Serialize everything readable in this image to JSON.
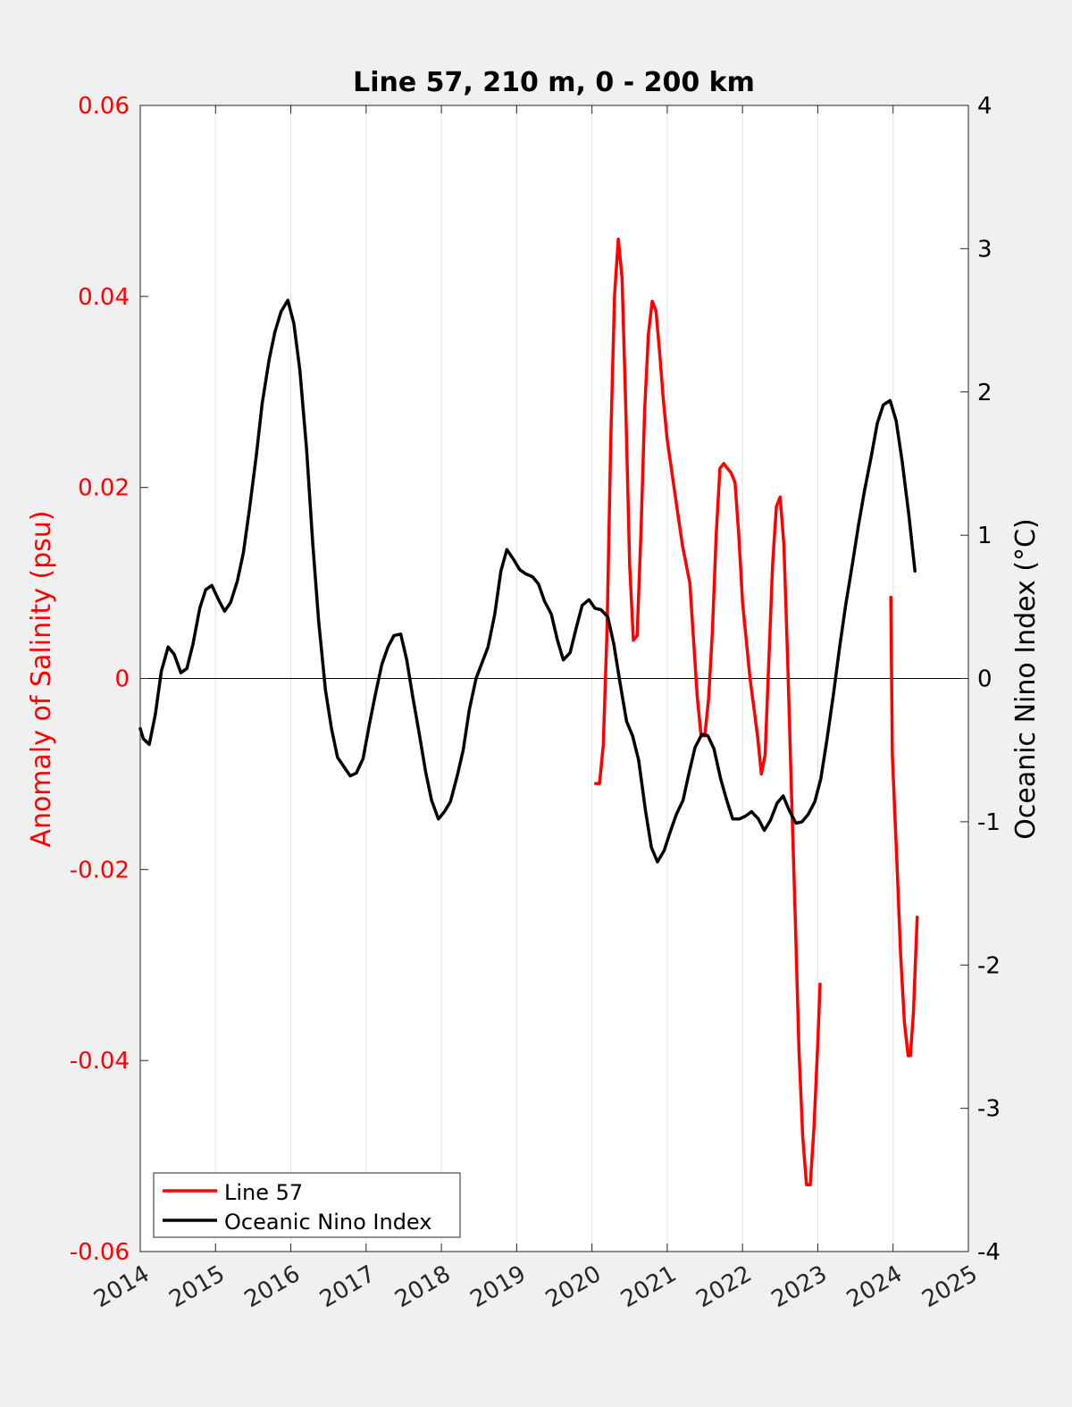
{
  "chart_data": {
    "type": "line",
    "title": "Line 57, 210 m, 0 - 200 km",
    "xlim": [
      2014,
      2025
    ],
    "xticks": [
      "2014",
      "2015",
      "2016",
      "2017",
      "2018",
      "2019",
      "2020",
      "2021",
      "2022",
      "2023",
      "2024",
      "2025"
    ],
    "grid": "vertical",
    "legend_position": "bottom-left",
    "left_axis": {
      "ylabel": "Anomaly of Salinity (psu)",
      "ylim": [
        -0.06,
        0.06
      ],
      "ticks": [
        "-0.06",
        "-0.04",
        "-0.02",
        "0",
        "0.02",
        "0.04",
        "0.06"
      ],
      "color": "#ff0000"
    },
    "right_axis": {
      "ylabel": "Oceanic Nino Index (°C)",
      "ylim": [
        -4,
        4
      ],
      "ticks": [
        "-4",
        "-3",
        "-2",
        "-1",
        "0",
        "1",
        "2",
        "3",
        "4"
      ],
      "color": "#000000"
    },
    "series": [
      {
        "name": "Line 57",
        "axis": "left",
        "color": "#ff0000",
        "segments": [
          [
            [
              2020.05,
              -0.011
            ],
            [
              2020.1,
              -0.011
            ],
            [
              2020.15,
              -0.007
            ],
            [
              2020.2,
              0.005
            ],
            [
              2020.25,
              0.025
            ],
            [
              2020.3,
              0.04
            ],
            [
              2020.35,
              0.046
            ],
            [
              2020.4,
              0.042
            ],
            [
              2020.45,
              0.028
            ],
            [
              2020.5,
              0.012
            ],
            [
              2020.55,
              0.004
            ],
            [
              2020.6,
              0.0045
            ],
            [
              2020.65,
              0.015
            ],
            [
              2020.7,
              0.028
            ],
            [
              2020.75,
              0.036
            ],
            [
              2020.8,
              0.0395
            ],
            [
              2020.85,
              0.0385
            ],
            [
              2020.9,
              0.034
            ],
            [
              2020.95,
              0.029
            ],
            [
              2021.0,
              0.025
            ],
            [
              2021.1,
              0.0195
            ],
            [
              2021.2,
              0.014
            ],
            [
              2021.3,
              0.01
            ],
            [
              2021.35,
              0.004
            ],
            [
              2021.4,
              -0.002
            ],
            [
              2021.45,
              -0.006
            ],
            [
              2021.5,
              -0.006
            ],
            [
              2021.55,
              -0.002
            ],
            [
              2021.6,
              0.005
            ],
            [
              2021.65,
              0.015
            ],
            [
              2021.7,
              0.022
            ],
            [
              2021.75,
              0.0225
            ],
            [
              2021.8,
              0.022
            ],
            [
              2021.85,
              0.0215
            ],
            [
              2021.9,
              0.0205
            ],
            [
              2021.95,
              0.015
            ],
            [
              2022.0,
              0.008
            ],
            [
              2022.1,
              0.0
            ],
            [
              2022.2,
              -0.006
            ],
            [
              2022.25,
              -0.01
            ],
            [
              2022.3,
              -0.008
            ],
            [
              2022.35,
              0.002
            ],
            [
              2022.4,
              0.012
            ],
            [
              2022.45,
              0.018
            ],
            [
              2022.5,
              0.019
            ],
            [
              2022.55,
              0.014
            ],
            [
              2022.6,
              0.002
            ],
            [
              2022.65,
              -0.012
            ],
            [
              2022.7,
              -0.025
            ],
            [
              2022.75,
              -0.039
            ],
            [
              2022.8,
              -0.048
            ],
            [
              2022.85,
              -0.053
            ],
            [
              2022.9,
              -0.053
            ],
            [
              2022.95,
              -0.047
            ],
            [
              2023.0,
              -0.038
            ],
            [
              2023.03,
              -0.032
            ]
          ],
          [
            [
              2023.97,
              0.0085
            ],
            [
              2023.99,
              -0.008
            ],
            [
              2024.05,
              -0.019
            ],
            [
              2024.1,
              -0.029
            ],
            [
              2024.15,
              -0.036
            ],
            [
              2024.2,
              -0.0395
            ],
            [
              2024.23,
              -0.0395
            ],
            [
              2024.27,
              -0.035
            ],
            [
              2024.32,
              -0.025
            ]
          ]
        ]
      },
      {
        "name": "Oceanic Nino Index",
        "axis": "right",
        "color": "#000000",
        "segments": [
          [
            [
              2014.0,
              -0.35
            ],
            [
              2014.04,
              -0.42
            ],
            [
              2014.12,
              -0.46
            ],
            [
              2014.2,
              -0.25
            ],
            [
              2014.28,
              0.05
            ],
            [
              2014.37,
              0.22
            ],
            [
              2014.45,
              0.17
            ],
            [
              2014.54,
              0.04
            ],
            [
              2014.62,
              0.07
            ],
            [
              2014.7,
              0.24
            ],
            [
              2014.79,
              0.49
            ],
            [
              2014.87,
              0.62
            ],
            [
              2014.95,
              0.65
            ],
            [
              2015.04,
              0.55
            ],
            [
              2015.12,
              0.47
            ],
            [
              2015.2,
              0.53
            ],
            [
              2015.29,
              0.68
            ],
            [
              2015.37,
              0.88
            ],
            [
              2015.45,
              1.18
            ],
            [
              2015.54,
              1.55
            ],
            [
              2015.62,
              1.92
            ],
            [
              2015.71,
              2.22
            ],
            [
              2015.79,
              2.42
            ],
            [
              2015.87,
              2.56
            ],
            [
              2015.96,
              2.64
            ],
            [
              2016.04,
              2.48
            ],
            [
              2016.12,
              2.15
            ],
            [
              2016.21,
              1.6
            ],
            [
              2016.29,
              0.95
            ],
            [
              2016.37,
              0.4
            ],
            [
              2016.46,
              -0.08
            ],
            [
              2016.54,
              -0.35
            ],
            [
              2016.62,
              -0.55
            ],
            [
              2016.71,
              -0.62
            ],
            [
              2016.79,
              -0.68
            ],
            [
              2016.87,
              -0.66
            ],
            [
              2016.96,
              -0.56
            ],
            [
              2017.04,
              -0.33
            ],
            [
              2017.12,
              -0.12
            ],
            [
              2017.21,
              0.1
            ],
            [
              2017.29,
              0.22
            ],
            [
              2017.37,
              0.3
            ],
            [
              2017.46,
              0.31
            ],
            [
              2017.54,
              0.13
            ],
            [
              2017.62,
              -0.13
            ],
            [
              2017.71,
              -0.4
            ],
            [
              2017.79,
              -0.65
            ],
            [
              2017.87,
              -0.85
            ],
            [
              2017.96,
              -0.98
            ],
            [
              2018.04,
              -0.93
            ],
            [
              2018.12,
              -0.86
            ],
            [
              2018.21,
              -0.68
            ],
            [
              2018.29,
              -0.5
            ],
            [
              2018.37,
              -0.22
            ],
            [
              2018.46,
              0.0
            ],
            [
              2018.54,
              0.11
            ],
            [
              2018.62,
              0.22
            ],
            [
              2018.71,
              0.45
            ],
            [
              2018.79,
              0.75
            ],
            [
              2018.87,
              0.9
            ],
            [
              2018.96,
              0.83
            ],
            [
              2019.04,
              0.76
            ],
            [
              2019.12,
              0.73
            ],
            [
              2019.21,
              0.71
            ],
            [
              2019.29,
              0.66
            ],
            [
              2019.37,
              0.54
            ],
            [
              2019.46,
              0.45
            ],
            [
              2019.54,
              0.27
            ],
            [
              2019.62,
              0.13
            ],
            [
              2019.71,
              0.18
            ],
            [
              2019.79,
              0.35
            ],
            [
              2019.87,
              0.51
            ],
            [
              2019.96,
              0.55
            ],
            [
              2020.04,
              0.49
            ],
            [
              2020.12,
              0.48
            ],
            [
              2020.21,
              0.43
            ],
            [
              2020.29,
              0.24
            ],
            [
              2020.37,
              -0.02
            ],
            [
              2020.46,
              -0.3
            ],
            [
              2020.54,
              -0.4
            ],
            [
              2020.62,
              -0.57
            ],
            [
              2020.71,
              -0.92
            ],
            [
              2020.79,
              -1.18
            ],
            [
              2020.87,
              -1.28
            ],
            [
              2020.96,
              -1.2
            ],
            [
              2021.04,
              -1.07
            ],
            [
              2021.12,
              -0.95
            ],
            [
              2021.21,
              -0.85
            ],
            [
              2021.29,
              -0.66
            ],
            [
              2021.37,
              -0.48
            ],
            [
              2021.46,
              -0.39
            ],
            [
              2021.54,
              -0.4
            ],
            [
              2021.62,
              -0.49
            ],
            [
              2021.71,
              -0.7
            ],
            [
              2021.79,
              -0.85
            ],
            [
              2021.87,
              -0.98
            ],
            [
              2021.96,
              -0.98
            ],
            [
              2022.04,
              -0.96
            ],
            [
              2022.12,
              -0.93
            ],
            [
              2022.21,
              -0.98
            ],
            [
              2022.29,
              -1.06
            ],
            [
              2022.37,
              -0.99
            ],
            [
              2022.46,
              -0.87
            ],
            [
              2022.54,
              -0.82
            ],
            [
              2022.62,
              -0.92
            ],
            [
              2022.71,
              -1.01
            ],
            [
              2022.79,
              -1.0
            ],
            [
              2022.87,
              -0.95
            ],
            [
              2022.96,
              -0.86
            ],
            [
              2023.04,
              -0.7
            ],
            [
              2023.12,
              -0.43
            ],
            [
              2023.21,
              -0.1
            ],
            [
              2023.29,
              0.22
            ],
            [
              2023.37,
              0.51
            ],
            [
              2023.46,
              0.8
            ],
            [
              2023.54,
              1.07
            ],
            [
              2023.62,
              1.31
            ],
            [
              2023.71,
              1.55
            ],
            [
              2023.79,
              1.78
            ],
            [
              2023.87,
              1.91
            ],
            [
              2023.96,
              1.94
            ],
            [
              2024.04,
              1.8
            ],
            [
              2024.12,
              1.52
            ],
            [
              2024.21,
              1.14
            ],
            [
              2024.29,
              0.75
            ]
          ]
        ]
      }
    ]
  }
}
